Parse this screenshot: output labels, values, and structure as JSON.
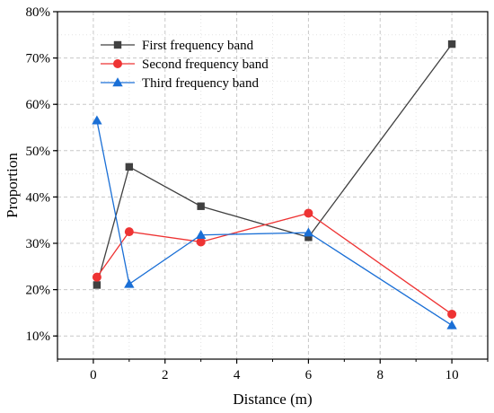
{
  "chart_data": {
    "type": "line",
    "xlabel": "Distance (m)",
    "ylabel": "Proportion",
    "xlim": [
      -1,
      11
    ],
    "ylim": [
      0.05,
      0.8
    ],
    "x_ticks": [
      0,
      2,
      4,
      6,
      8,
      10
    ],
    "x_tick_labels": [
      "0",
      "2",
      "4",
      "6",
      "8",
      "10"
    ],
    "y_ticks": [
      0.1,
      0.2,
      0.3,
      0.4,
      0.5,
      0.6,
      0.7,
      0.8
    ],
    "y_tick_labels": [
      "10%",
      "20%",
      "30%",
      "40%",
      "50%",
      "60%",
      "70%",
      "80%"
    ],
    "grid": true,
    "legend_position": "top-left",
    "series": [
      {
        "name": "First frequency band",
        "color": "#404040",
        "marker": "square",
        "x": [
          0.1,
          1,
          3,
          6,
          10
        ],
        "y": [
          0.21,
          0.465,
          0.38,
          0.313,
          0.73
        ]
      },
      {
        "name": "Second frequency band",
        "color": "#ee3333",
        "marker": "circle",
        "x": [
          0.1,
          1,
          3,
          6,
          10
        ],
        "y": [
          0.227,
          0.325,
          0.303,
          0.365,
          0.147
        ]
      },
      {
        "name": "Third frequency band",
        "color": "#1a6fd6",
        "marker": "triangle",
        "x": [
          0.1,
          1,
          3,
          6,
          10
        ],
        "y": [
          0.565,
          0.212,
          0.318,
          0.323,
          0.123
        ]
      }
    ]
  }
}
